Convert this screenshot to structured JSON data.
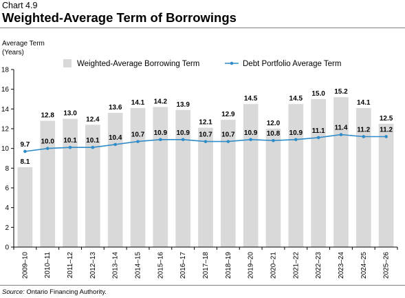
{
  "header": {
    "chart_label": "Chart 4.9",
    "title": "Weighted-Average Term of Borrowings"
  },
  "footer": {
    "source_label": "Source:",
    "source_text": " Ontario Financing Authority."
  },
  "colors": {
    "bar": "#d9d9d9",
    "line": "#2f8cc8",
    "axis": "#000000",
    "text": "#000000"
  },
  "chart_data": {
    "type": "bar",
    "ylabel": [
      "Average Term",
      "(Years)"
    ],
    "ylim": [
      0,
      18
    ],
    "yticks": [
      0,
      2,
      4,
      6,
      8,
      10,
      12,
      14,
      16,
      18
    ],
    "grid": false,
    "legend_position": "top",
    "categories": [
      "2009–10",
      "2010–11",
      "2011–12",
      "2012–13",
      "2013–14",
      "2014–15",
      "2015–16",
      "2016–17",
      "2017–18",
      "2018–19",
      "2019–20",
      "2020–21",
      "2021–22",
      "2022–23",
      "2023–24",
      "2024–25",
      "2025–26"
    ],
    "series": [
      {
        "name": "Weighted-Average Borrowing Term",
        "type": "bar",
        "values": [
          8.1,
          12.8,
          13.0,
          12.4,
          13.6,
          14.1,
          14.2,
          13.9,
          12.1,
          12.9,
          14.5,
          12.0,
          14.5,
          15.0,
          15.2,
          14.1,
          12.5
        ],
        "labels": [
          "8.1",
          "12.8",
          "13.0",
          "12.4",
          "13.6",
          "14.1",
          "14.2",
          "13.9",
          "12.1",
          "12.9",
          "14.5",
          "12.0",
          "14.5",
          "15.0",
          "15.2",
          "14.1",
          "12.5"
        ]
      },
      {
        "name": "Debt Portfolio Average Term",
        "type": "line",
        "values": [
          9.7,
          10.0,
          10.1,
          10.1,
          10.4,
          10.7,
          10.9,
          10.9,
          10.7,
          10.7,
          10.9,
          10.8,
          10.9,
          11.1,
          11.4,
          11.2,
          11.2
        ],
        "labels": [
          "9.7",
          "10.0",
          "10.1",
          "10.1",
          "10.4",
          "10.7",
          "10.9",
          "10.9",
          "10.7",
          "10.7",
          "10.9",
          "10.8",
          "10.9",
          "11.1",
          "11.4",
          "11.2",
          "11.2"
        ]
      }
    ]
  }
}
